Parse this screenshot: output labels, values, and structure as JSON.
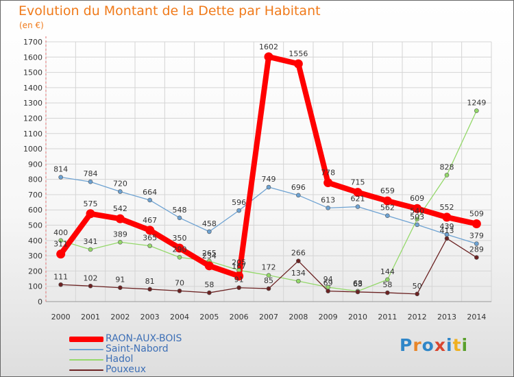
{
  "title": "Evolution du Montant de la Dette par Habitant",
  "unit": "(en €)",
  "logo": {
    "text": "Proxiti",
    "letter_colors": [
      "#2f86c8",
      "#e8862a",
      "#2f86c8",
      "#d8452f",
      "#2f86c8",
      "#f0b020",
      "#5aa02c"
    ]
  },
  "chart_data": {
    "type": "line",
    "title": "Evolution du Montant de la Dette par Habitant",
    "ylabel": "(en €)",
    "xlabel": "",
    "categories": [
      "2000",
      "2001",
      "2002",
      "2003",
      "2004",
      "2005",
      "2006",
      "2007",
      "2008",
      "2009",
      "2010",
      "2011",
      "2012",
      "2013",
      "2014"
    ],
    "ylim": [
      0,
      1700
    ],
    "yticks": [
      0,
      100,
      200,
      300,
      400,
      500,
      600,
      700,
      800,
      900,
      1000,
      1100,
      1200,
      1300,
      1400,
      1500,
      1600,
      1700
    ],
    "grid": true,
    "legend_position": "bottom-left",
    "series": [
      {
        "name": "RAON-AUX-BOIS",
        "color": "#ff0000",
        "highlight": true,
        "values": [
          311,
          575,
          542,
          467,
          350,
          234,
          167,
          1602,
          1556,
          778,
          715,
          659,
          609,
          552,
          509
        ]
      },
      {
        "name": "Saint-Nabord",
        "color": "#6da2d2",
        "highlight": false,
        "values": [
          814,
          784,
          720,
          664,
          548,
          458,
          596,
          749,
          696,
          613,
          621,
          562,
          503,
          439,
          379
        ]
      },
      {
        "name": "Hadol",
        "color": "#94d86a",
        "highlight": false,
        "values": [
          400,
          341,
          389,
          365,
          290,
          265,
          205,
          172,
          134,
          94,
          68,
          144,
          540,
          828,
          1249
        ]
      },
      {
        "name": "Pouxeux",
        "color": "#6b2222",
        "highlight": false,
        "values": [
          111,
          102,
          91,
          81,
          70,
          58,
          91,
          85,
          266,
          69,
          63,
          58,
          50,
          413,
          289
        ]
      }
    ]
  }
}
